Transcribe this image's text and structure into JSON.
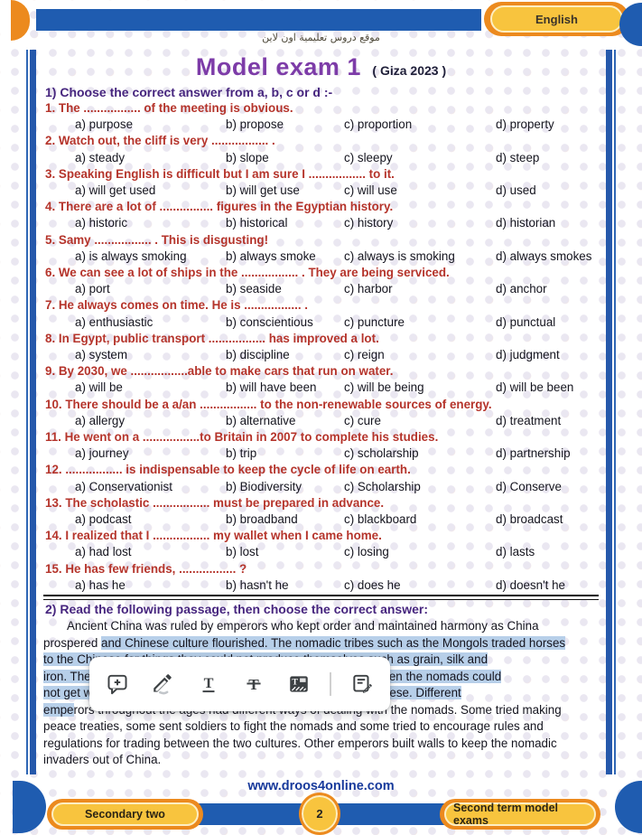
{
  "header": {
    "tab_label": "English",
    "site_line_arabic": "موقع دروس تعليمية اون لاين",
    "title": "Model exam 1",
    "title_suffix": "( Giza 2023 )"
  },
  "section1": {
    "heading": "1) Choose the correct answer from a, b, c or d :-",
    "questions": [
      {
        "q": "1. The ................. of the meeting is obvious.",
        "options": [
          "a) purpose",
          "b) propose",
          "c) proportion",
          "d) property"
        ]
      },
      {
        "q": "2. Watch out, the cliff is very ................. .",
        "options": [
          "a) steady",
          "b) slope",
          "c) sleepy",
          "d) steep"
        ]
      },
      {
        "q": "3. Speaking English is difficult but I am sure I ................. to it.",
        "options": [
          "a) will get used",
          "b) will get use",
          "c) will use",
          "d) used"
        ]
      },
      {
        "q": "4. There are a lot of ................ figures in the Egyptian history.",
        "options": [
          "a) historic",
          "b) historical",
          "c) history",
          "d) historian"
        ]
      },
      {
        "q": "5. Samy ................. . This is disgusting!",
        "options": [
          "a) is always smoking",
          "b) always smoke",
          "c) always is smoking",
          "d) always smokes"
        ]
      },
      {
        "q": "6. We can see a lot of ships in the ................. . They are being serviced.",
        "options": [
          "a) port",
          "b) seaside",
          "c) harbor",
          "d) anchor"
        ]
      },
      {
        "q": "7. He always comes on time. He is ................. .",
        "options": [
          "a) enthusiastic",
          "b) conscientious",
          "c) puncture",
          "d) punctual"
        ]
      },
      {
        "q": "8. In Egypt, public transport ................. has improved a lot.",
        "options": [
          "a) system",
          "b) discipline",
          "c) reign",
          "d) judgment"
        ]
      },
      {
        "q": "9. By 2030, we .................able to make cars that run on water.",
        "options": [
          "a) will be",
          "b) will have been",
          "c) will be being",
          "d) will be been"
        ]
      },
      {
        "q": "10. There should be a a/an ................. to the non-renewable sources of energy.",
        "options": [
          "a) allergy",
          "b) alternative",
          "c) cure",
          "d) treatment"
        ]
      },
      {
        "q": "11. He went on a .................to Britain in 2007 to complete his studies.",
        "options": [
          "a) journey",
          "b) trip",
          "c) scholarship",
          "d) partnership"
        ]
      },
      {
        "q": "12. ................. is indispensable to keep the cycle of life on earth.",
        "options": [
          "a) Conservationist",
          "b) Biodiversity",
          "c) Scholarship",
          "d) Conserve"
        ]
      },
      {
        "q": "13. The scholastic ................. must be prepared in advance.",
        "options": [
          "a) podcast",
          "b) broadband",
          "c) blackboard",
          "d) broadcast"
        ]
      },
      {
        "q": "14. I realized that I ................. my wallet when I came home.",
        "options": [
          "a) had lost",
          "b) lost",
          "c) losing",
          "d) lasts"
        ]
      },
      {
        "q": "15. He has few friends, ................. ?",
        "options": [
          "a) has he",
          "b) hasn't he",
          "c) does he",
          "d) doesn't he"
        ]
      }
    ]
  },
  "section2": {
    "heading": "2) Read the following passage, then choose the correct answer:",
    "passage_lines": [
      {
        "pre": "Ancient China was ruled by emperors who kept order and maintained harmony as China",
        "hl": "",
        "post": ""
      },
      {
        "pre": "prospered ",
        "hl": "and Chinese culture flourished. The nomadic tribes such as the Mongols traded horses",
        "post": ""
      },
      {
        "pre": "",
        "hl": "to the Chinese for things they could not produce themselves such as grain, silk and",
        "post": ""
      },
      {
        "pre": "",
        "hl": "iron. The differences between the two cultures led to conflict. When the nomads could",
        "post": ""
      },
      {
        "pre": "",
        "hl": "not get what they needed, they would take plunder from the Chinese. Different",
        "post": ""
      },
      {
        "pre": "",
        "hl": "empe",
        "post": "rors throughout the ages had different ways of dealing with the nomads. Some tried making"
      },
      {
        "pre": "peace treaties, some sent soldiers to fight the nomads and some tried to encourage rules and",
        "hl": "",
        "post": ""
      },
      {
        "pre": "regulations for trading between the two cultures. Other emperors built walls to keep the nomadic",
        "hl": "",
        "post": ""
      },
      {
        "pre": "invaders out of China.",
        "hl": "",
        "post": ""
      }
    ]
  },
  "toolbar": {
    "icons": [
      "add-comment-icon",
      "highlighter-pen-icon",
      "underline-icon",
      "strikethrough-icon",
      "highlight-style-icon",
      "copy-to-note-icon"
    ]
  },
  "footer": {
    "website": "www.droos4online.com",
    "left_badge": "Secondary two",
    "page_number": "2",
    "right_badge": "Second term model exams"
  },
  "colors": {
    "blue": "#1f5cb0",
    "orange": "#ec8a1e",
    "yellow": "#f8c43e",
    "title_purple": "#7d3ca8",
    "heading_purple": "#46257e",
    "question_red": "#b5342b",
    "selection_highlight": "#b7cfe9",
    "website_blue": "#16399b"
  }
}
